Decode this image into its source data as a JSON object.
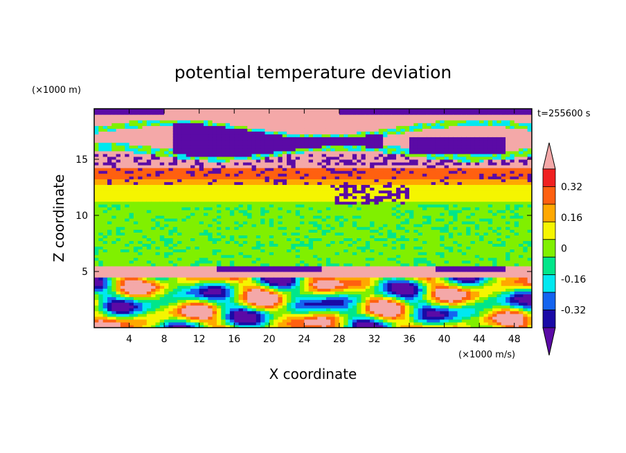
{
  "chart_data": {
    "type": "heatmap",
    "title": "potential temperature deviation",
    "xlabel": "X coordinate",
    "ylabel": "Z coordinate",
    "x_unit": "(×1000 m/s)",
    "y_unit": "(×1000 m)",
    "time_label": "t=255600 s",
    "xlim": [
      0,
      50
    ],
    "ylim": [
      0,
      19.5
    ],
    "x_ticks": [
      "4",
      "8",
      "12",
      "16",
      "20",
      "24",
      "28",
      "32",
      "36",
      "40",
      "44",
      "48"
    ],
    "x_tick_values": [
      4,
      8,
      12,
      16,
      20,
      24,
      28,
      32,
      36,
      40,
      44,
      48
    ],
    "y_ticks": [
      "5",
      "10",
      "15"
    ],
    "y_tick_values": [
      5,
      10,
      15
    ],
    "colorbar": {
      "levels": [
        -0.4,
        -0.32,
        -0.24,
        -0.16,
        -0.08,
        0,
        0.08,
        0.16,
        0.24,
        0.32,
        0.4
      ],
      "colors": [
        "#5b0aa6",
        "#1a0aa6",
        "#1464f0",
        "#00e8f0",
        "#00e68a",
        "#80f000",
        "#f5f500",
        "#ffa800",
        "#ff6010",
        "#f02020",
        "#f4a8a8"
      ],
      "tick_labels": [
        "0.32",
        "0.16",
        "0",
        "-0.16",
        "-0.32"
      ],
      "tick_values": [
        0.32,
        0.16,
        0,
        -0.16,
        -0.32
      ]
    },
    "layers": [
      {
        "zmin": 0,
        "zmax": 4.5,
        "description_level": "mixed"
      },
      {
        "zmin": 4.6,
        "zmax": 5.6,
        "level": 0.4
      },
      {
        "zmin": 5.6,
        "zmax": 12.5,
        "level": 0.04
      },
      {
        "zmin": 12.5,
        "zmax": 14.6,
        "level": 0.28
      },
      {
        "zmin": 14.6,
        "zmax": 19.5,
        "level": 0.4
      }
    ],
    "grid": false
  }
}
